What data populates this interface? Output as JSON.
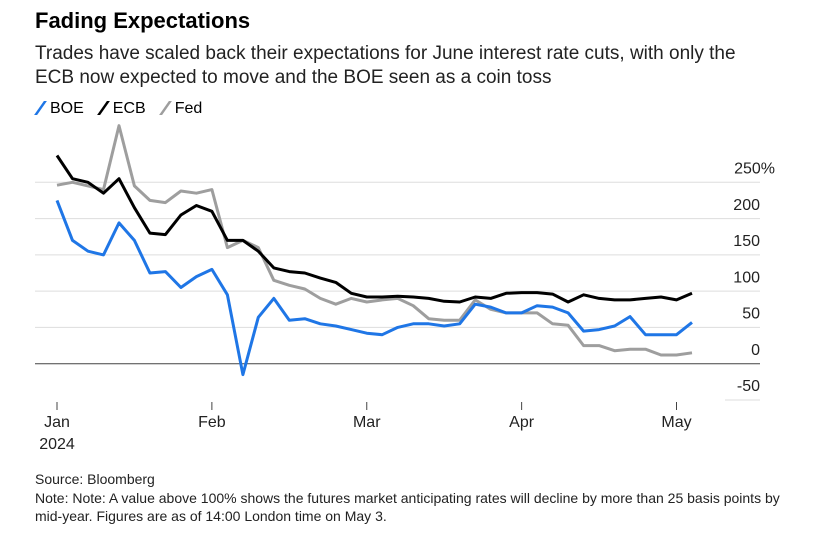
{
  "chart_data": {
    "type": "line",
    "title": "Fading Expectations",
    "subtitle": "Trades have scaled back their expectations for June interest rate cuts, with only the ECB now expected to move and the BOE seen as a coin toss",
    "source": "Source: Bloomberg",
    "note": "Note: Note: A value above 100% shows the futures market anticipating rates will decline by more than 25 basis points by mid-year. Figures are as of 14:00 London time on May 3.",
    "x_year": "2024",
    "categories": [
      "Jan",
      null,
      null,
      null,
      null,
      null,
      null,
      null,
      null,
      null,
      "Feb",
      null,
      null,
      null,
      null,
      null,
      null,
      null,
      null,
      null,
      "Mar",
      null,
      null,
      null,
      null,
      null,
      null,
      null,
      null,
      null,
      "Apr",
      null,
      null,
      null,
      null,
      null,
      null,
      null,
      null,
      null,
      "May",
      null
    ],
    "series": [
      {
        "name": "BOE",
        "color": "#1f76e6",
        "values": [
          225,
          170,
          155,
          150,
          194,
          170,
          125,
          127,
          105,
          120,
          130,
          95,
          -15,
          64,
          90,
          60,
          62,
          55,
          52,
          47,
          42,
          40,
          50,
          55,
          55,
          52,
          55,
          82,
          78,
          70,
          70,
          80,
          78,
          70,
          45,
          47,
          52,
          65,
          40,
          40,
          40,
          57
        ]
      },
      {
        "name": "ECB",
        "color": "#000000",
        "values": [
          287,
          255,
          250,
          235,
          255,
          215,
          180,
          178,
          205,
          218,
          210,
          170,
          170,
          155,
          132,
          127,
          125,
          118,
          112,
          97,
          92,
          92,
          93,
          92,
          90,
          86,
          85,
          92,
          90,
          97,
          98,
          98,
          96,
          85,
          95,
          90,
          88,
          88,
          90,
          92,
          88,
          97
        ]
      },
      {
        "name": "Fed",
        "color": "#9e9e9e",
        "values": [
          246,
          250,
          245,
          240,
          328,
          245,
          225,
          222,
          238,
          235,
          240,
          160,
          170,
          160,
          115,
          108,
          103,
          90,
          82,
          90,
          85,
          88,
          90,
          80,
          62,
          60,
          60,
          88,
          75,
          70,
          70,
          70,
          55,
          53,
          25,
          25,
          18,
          20,
          20,
          12,
          12,
          15
        ]
      }
    ],
    "ylim": [
      -50,
      340
    ],
    "yticks": [
      -50,
      0,
      50,
      100,
      150,
      200,
      {
        "value": 250,
        "label": "250%"
      }
    ],
    "grid": true
  }
}
